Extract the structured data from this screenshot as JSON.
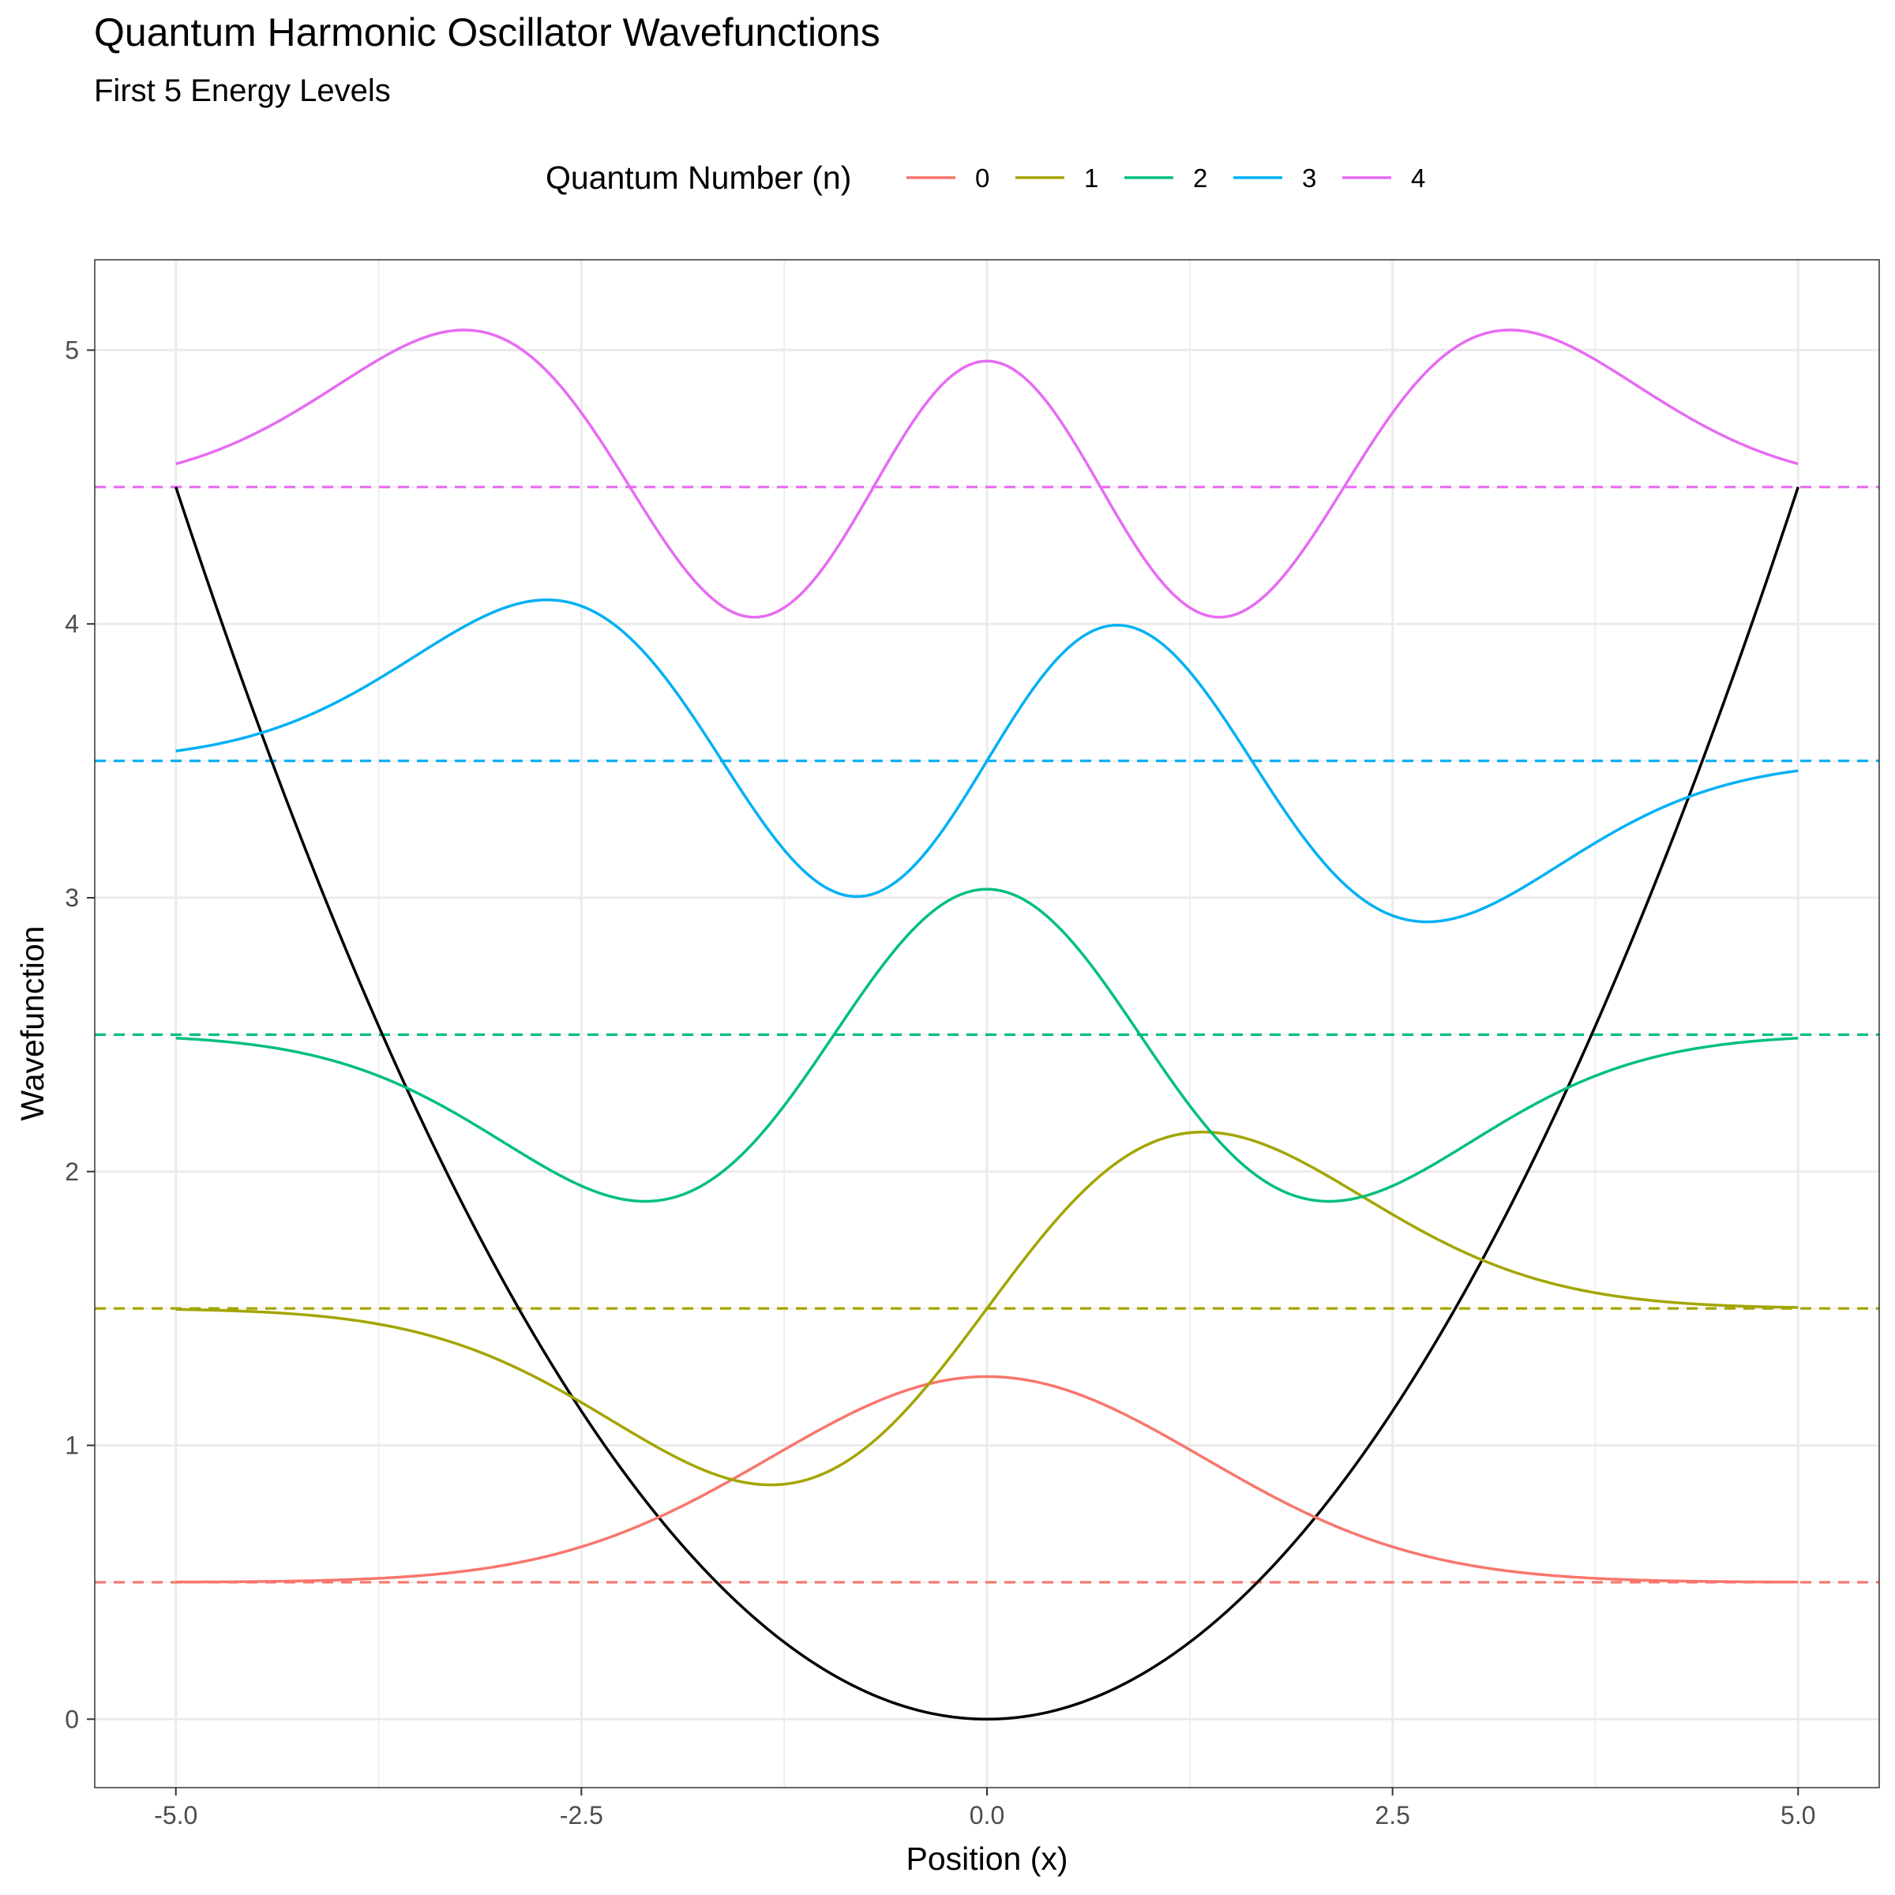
{
  "chart_data": {
    "type": "line",
    "title": "Quantum Harmonic Oscillator Wavefunctions",
    "subtitle": "First 5 Energy Levels",
    "xlabel": "Position (x)",
    "ylabel": "Wavefunction",
    "xlim": [
      -5.5,
      5.5
    ],
    "ylim": [
      -0.25,
      5.33
    ],
    "x_ticks": [
      -5.0,
      -2.5,
      0.0,
      2.5,
      5.0
    ],
    "x_tick_labels": [
      "-5.0",
      "-2.5",
      "0.0",
      "2.5",
      "5.0"
    ],
    "x_minor_ticks": [
      -3.75,
      -1.25,
      1.25,
      3.75
    ],
    "y_ticks": [
      0,
      1,
      2,
      3,
      4,
      5
    ],
    "y_tick_labels": [
      "0",
      "1",
      "2",
      "3",
      "4",
      "5"
    ],
    "y_minor_ticks": [
      0.5,
      1.5,
      2.5,
      3.5,
      4.5
    ],
    "grid": true,
    "legend": {
      "title": "Quantum Number (n)",
      "position": "top"
    },
    "potential": {
      "formula": "0.18 * x^2",
      "color": "#000000",
      "x_range": [
        -5,
        5
      ]
    },
    "energy_levels": {
      "style": "dashed",
      "x_range": [
        -5.5,
        5.5
      ]
    },
    "series": [
      {
        "name": "0",
        "n": 0,
        "energy": 0.5,
        "color": "#F8766D",
        "peak_values": {
          "x": [
            0.0
          ],
          "y": [
            1.25
          ]
        }
      },
      {
        "name": "1",
        "n": 1,
        "energy": 1.5,
        "color": "#A3A500",
        "peak_values": {
          "x": [
            -1.0,
            1.0
          ],
          "y": [
            0.86,
            2.14
          ]
        }
      },
      {
        "name": "2",
        "n": 2,
        "energy": 2.5,
        "color": "#00BF7D",
        "peak_values": {
          "x": [
            -1.58,
            0.0,
            1.58
          ],
          "y": [
            3.11,
            1.97,
            3.11
          ]
        }
      },
      {
        "name": "3",
        "n": 3,
        "energy": 3.5,
        "color": "#00B0F6",
        "peak_values": {
          "x": [
            -2.02,
            -0.6,
            0.6,
            2.02
          ],
          "y": [
            2.92,
            4.0,
            3.0,
            4.09
          ]
        }
      },
      {
        "name": "4",
        "n": 4,
        "energy": 4.5,
        "color": "#E76BF3",
        "peak_values": {
          "x": [
            -2.42,
            -1.05,
            0.0,
            1.05,
            2.42
          ],
          "y": [
            5.07,
            4.03,
            4.96,
            4.03,
            5.07
          ]
        }
      }
    ]
  }
}
